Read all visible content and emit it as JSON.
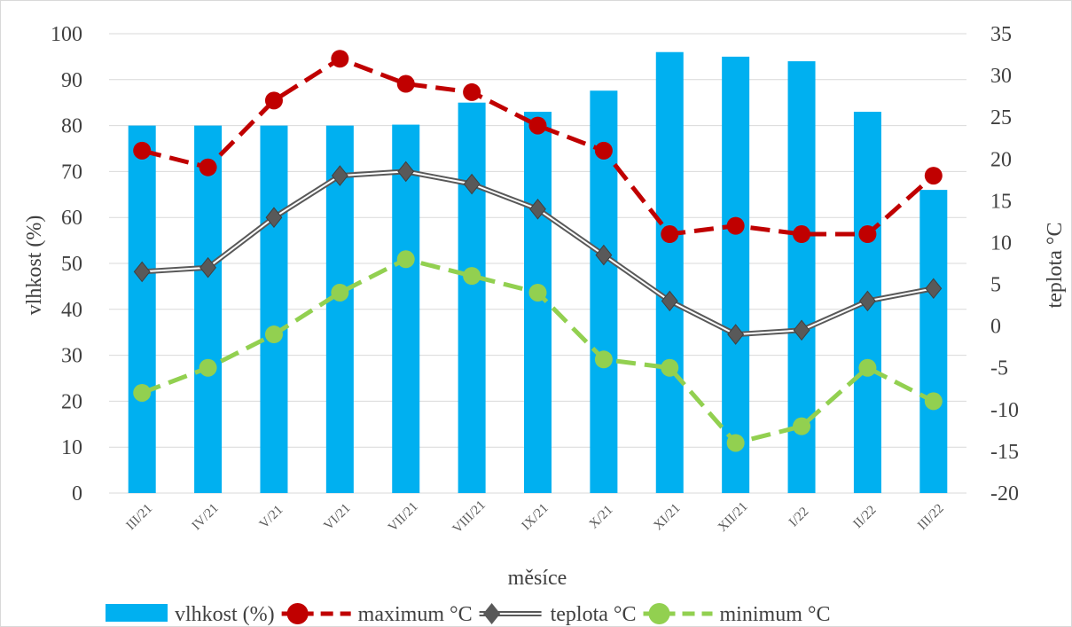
{
  "chart_data": {
    "type": "bar+line",
    "xlabel": "měsíce",
    "categories": [
      "III/21",
      "IV/21",
      "V/21",
      "VI/21",
      "VII/21",
      "VIII/21",
      "IX/21",
      "X/21",
      "XI/21",
      "XII/21",
      "I/22",
      "II/22",
      "III/22"
    ],
    "y_left": {
      "label": "vlhkost (%)",
      "min": 0,
      "max": 100,
      "step": 10
    },
    "y_right": {
      "label": "teplota °C",
      "min": -20,
      "max": 35,
      "step": 5
    },
    "grid": "horizontal",
    "legend_position": "bottom",
    "series": [
      {
        "name": "vlhkost (%)",
        "type": "bar",
        "axis": "left",
        "color": "#00b0f0",
        "values": [
          80,
          80,
          80,
          80,
          80.2,
          85,
          83,
          87.6,
          96,
          95,
          94,
          83,
          66
        ]
      },
      {
        "name": "maximum °C",
        "type": "line",
        "axis": "right",
        "color": "#c00000",
        "dash": "dashed",
        "marker": "circle",
        "values": [
          21,
          19,
          27,
          32,
          29,
          28,
          24,
          21,
          11,
          12,
          11,
          11,
          18
        ]
      },
      {
        "name": "teplota °C",
        "type": "line",
        "axis": "right",
        "color": "#595959",
        "dash": "double",
        "marker": "diamond",
        "values": [
          6.5,
          7,
          13,
          18,
          18.5,
          17,
          14,
          8.5,
          3,
          -1,
          -0.5,
          3,
          4.5
        ]
      },
      {
        "name": "minimum °C",
        "type": "line",
        "axis": "right",
        "color": "#92d050",
        "dash": "dashed",
        "marker": "circle",
        "values": [
          -8,
          -5,
          -1,
          4,
          8,
          6,
          4,
          -4,
          -5,
          -14,
          -12,
          -5,
          -9
        ]
      }
    ]
  }
}
